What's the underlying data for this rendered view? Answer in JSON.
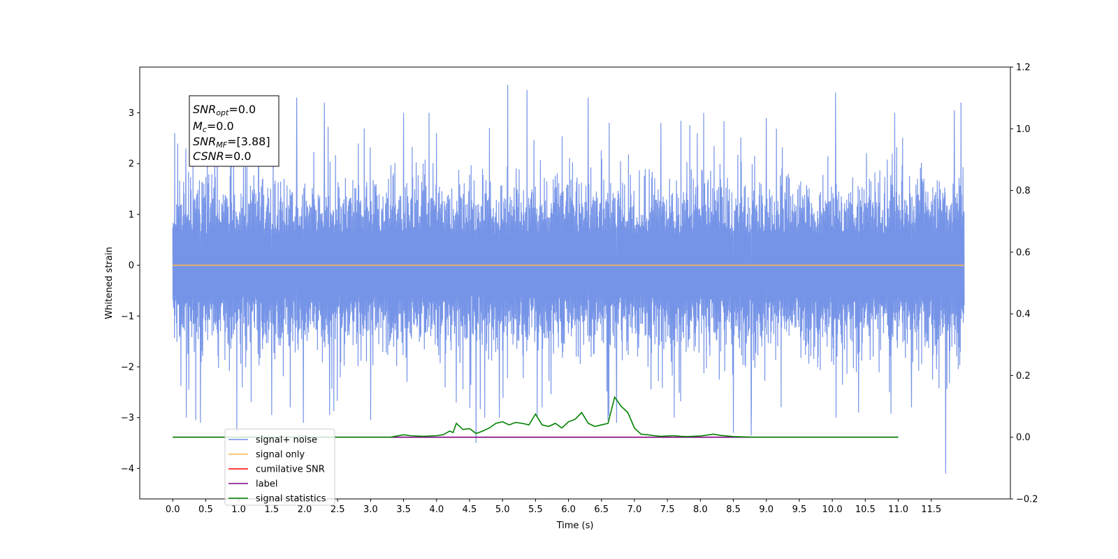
{
  "chart_data": {
    "type": "line",
    "xlabel": "Time (s)",
    "ylabel": "Whitened strain",
    "xlim": [
      -0.5,
      12.7
    ],
    "ylim": [
      -4.6,
      3.9
    ],
    "y2lim": [
      -0.2,
      1.2
    ],
    "x_ticks": [
      "0.0",
      "0.5",
      "1.0",
      "1.5",
      "2.0",
      "2.5",
      "3.0",
      "3.5",
      "4.0",
      "4.5",
      "5.0",
      "5.5",
      "6.0",
      "6.5",
      "7.0",
      "7.5",
      "8.0",
      "8.5",
      "9.0",
      "9.5",
      "10.0",
      "10.5",
      "11.0",
      "11.5"
    ],
    "y_ticks": [
      "3",
      "2",
      "1",
      "0",
      "−1",
      "−2",
      "−3",
      "−4"
    ],
    "y2_ticks": [
      "1.2",
      "1.0",
      "0.8",
      "0.6",
      "0.4",
      "0.2",
      "0.0",
      "−0.2"
    ],
    "legend_position": "lower-left",
    "info_box": {
      "snr_opt": {
        "main": "SNR",
        "sub": "opt",
        "value": "=0.0"
      },
      "mc": {
        "main": "M",
        "sub": "c",
        "value": "=0.0"
      },
      "snr_mf": {
        "main": "SNR",
        "sub": "MF",
        "value": "=[3.88]"
      },
      "csnr": {
        "main": "CSNR",
        "value": "=0.0"
      }
    },
    "noise_series": {
      "color": "#6f8ee6",
      "x_range": [
        0.0,
        12.0
      ],
      "core_envelope": [
        -1.6,
        1.6
      ],
      "spikes": [
        [
          0.03,
          2.6
        ],
        [
          0.2,
          2.3
        ],
        [
          0.35,
          -3.05
        ],
        [
          0.42,
          -3.1
        ],
        [
          0.97,
          -3.3
        ],
        [
          1.3,
          3.2
        ],
        [
          1.5,
          -2.95
        ],
        [
          1.78,
          -2.8
        ],
        [
          1.88,
          3.3
        ],
        [
          1.98,
          -3.1
        ],
        [
          2.3,
          3.2
        ],
        [
          2.38,
          -2.95
        ],
        [
          3.0,
          -3.05
        ],
        [
          3.5,
          3.0
        ],
        [
          4.0,
          2.6
        ],
        [
          4.3,
          -2.7
        ],
        [
          4.6,
          -3.5
        ],
        [
          4.8,
          2.7
        ],
        [
          4.95,
          -3.0
        ],
        [
          5.08,
          3.55
        ],
        [
          5.37,
          3.45
        ],
        [
          5.6,
          -2.8
        ],
        [
          6.3,
          3.3
        ],
        [
          6.6,
          -3.05
        ],
        [
          6.73,
          -3.1
        ],
        [
          7.4,
          2.8
        ],
        [
          8.05,
          3.0
        ],
        [
          8.5,
          -3.3
        ],
        [
          8.77,
          -3.35
        ],
        [
          9.0,
          2.9
        ],
        [
          10.05,
          3.4
        ],
        [
          10.4,
          -2.9
        ],
        [
          11.2,
          -2.8
        ],
        [
          11.72,
          -4.1
        ],
        [
          11.85,
          3.05
        ],
        [
          11.95,
          3.2
        ]
      ]
    },
    "series": [
      {
        "name": "signal+ noise",
        "color": "#6f8ee6"
      },
      {
        "name": "signal only",
        "color": "#ffb74d",
        "x": [
          0.0,
          12.0
        ],
        "values": [
          0.0,
          0.0
        ]
      },
      {
        "name": "cumilative SNR",
        "color": "#ff0000"
      },
      {
        "name": "label",
        "color": "#800080",
        "axis": "right",
        "x": [
          0.0,
          11.0
        ],
        "values": [
          0.0,
          0.0
        ]
      },
      {
        "name": "signal statistics",
        "color": "#008000",
        "axis": "right",
        "x": [
          0.0,
          3.0,
          3.3,
          3.5,
          3.6,
          3.8,
          4.0,
          4.1,
          4.2,
          4.25,
          4.3,
          4.4,
          4.5,
          4.6,
          4.7,
          4.8,
          4.9,
          5.0,
          5.1,
          5.2,
          5.3,
          5.4,
          5.5,
          5.6,
          5.7,
          5.8,
          5.9,
          6.0,
          6.1,
          6.2,
          6.3,
          6.4,
          6.5,
          6.6,
          6.7,
          6.8,
          6.9,
          7.0,
          7.1,
          7.2,
          7.3,
          7.4,
          7.5,
          7.6,
          7.7,
          7.8,
          8.0,
          8.2,
          8.3,
          8.5,
          8.8,
          9.0,
          11.0
        ],
        "values": [
          0.0,
          0.0,
          0.0,
          0.008,
          0.005,
          0.003,
          0.005,
          0.008,
          0.02,
          0.015,
          0.045,
          0.025,
          0.028,
          0.012,
          0.02,
          0.03,
          0.045,
          0.05,
          0.04,
          0.048,
          0.045,
          0.04,
          0.075,
          0.04,
          0.035,
          0.045,
          0.03,
          0.05,
          0.058,
          0.08,
          0.045,
          0.035,
          0.04,
          0.045,
          0.13,
          0.1,
          0.08,
          0.03,
          0.01,
          0.008,
          0.005,
          0.003,
          0.004,
          0.005,
          0.003,
          0.002,
          0.004,
          0.01,
          0.006,
          0.002,
          0.0,
          0.0,
          0.0
        ]
      }
    ]
  }
}
